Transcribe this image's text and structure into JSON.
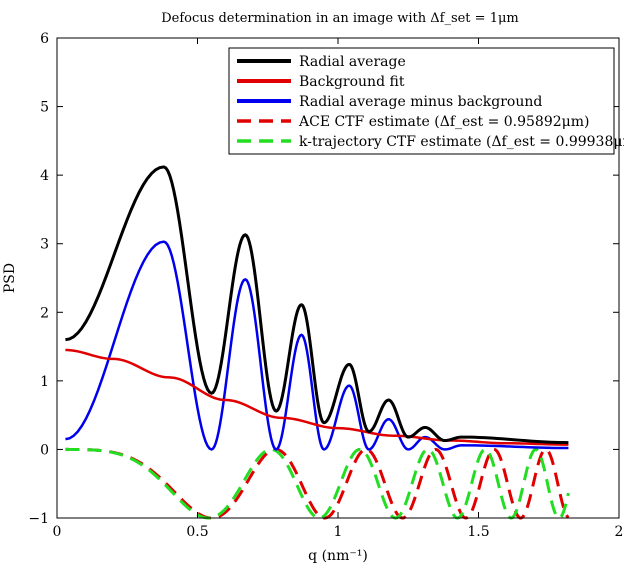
{
  "chart_data": {
    "type": "line",
    "title": "Defocus determination in an image with Δf_set = 1μm",
    "xlabel": "q (nm⁻¹)",
    "ylabel": "PSD",
    "xlim": [
      0,
      2
    ],
    "ylim": [
      -1,
      6
    ],
    "xticks": [
      "0",
      "0.5",
      "1",
      "1.5",
      "2"
    ],
    "yticks": [
      "−1",
      "0",
      "1",
      "2",
      "3",
      "4",
      "5",
      "6"
    ],
    "grid": false,
    "legend_position": "top-right",
    "x_range": [
      0.03,
      1.82
    ],
    "series": [
      {
        "name": "Radial average",
        "color": "#000000",
        "style": "solid",
        "peaks": [
          [
            0.38,
            4.12
          ],
          [
            0.67,
            3.13
          ],
          [
            0.87,
            2.11
          ],
          [
            1.04,
            1.24
          ],
          [
            1.18,
            0.72
          ],
          [
            1.31,
            0.32
          ],
          [
            1.44,
            0.18
          ]
        ],
        "minima": [
          [
            0.55,
            0.82
          ],
          [
            0.78,
            0.56
          ],
          [
            0.95,
            0.39
          ],
          [
            1.11,
            0.26
          ],
          [
            1.25,
            0.18
          ],
          [
            1.38,
            0.13
          ]
        ],
        "endpoints": [
          [
            0.03,
            1.6
          ],
          [
            1.82,
            0.1
          ]
        ]
      },
      {
        "name": "Background fit",
        "color": "#e00000",
        "style": "solid",
        "x": [
          0.03,
          0.2,
          0.4,
          0.6,
          0.8,
          1.0,
          1.2,
          1.4,
          1.6,
          1.82
        ],
        "y": [
          1.45,
          1.32,
          1.05,
          0.72,
          0.46,
          0.31,
          0.2,
          0.13,
          0.09,
          0.07
        ]
      },
      {
        "name": "Radial average minus background",
        "color": "#0000ee",
        "style": "solid",
        "peaks": [
          [
            0.38,
            3.03
          ],
          [
            0.67,
            2.48
          ],
          [
            0.87,
            1.67
          ],
          [
            1.04,
            0.93
          ],
          [
            1.18,
            0.44
          ],
          [
            1.31,
            0.18
          ],
          [
            1.44,
            0.06
          ]
        ],
        "minima": [
          [
            0.55,
            0.0
          ],
          [
            0.78,
            0.0
          ],
          [
            0.95,
            0.0
          ],
          [
            1.11,
            0.0
          ],
          [
            1.25,
            0.0
          ],
          [
            1.38,
            0.0
          ]
        ],
        "endpoints": [
          [
            0.03,
            0.15
          ],
          [
            1.82,
            0.02
          ]
        ]
      },
      {
        "name": "ACE CTF estimate (Δf_est = 0.95892μm)",
        "color": "#e00000",
        "style": "dashed",
        "y_range": [
          -1,
          0
        ]
      },
      {
        "name": "k-trajectory CTF estimate (Δf_est = 0.99938μm)",
        "color": "#22dd22",
        "style": "dashed",
        "y_range": [
          -1,
          0
        ]
      }
    ]
  }
}
